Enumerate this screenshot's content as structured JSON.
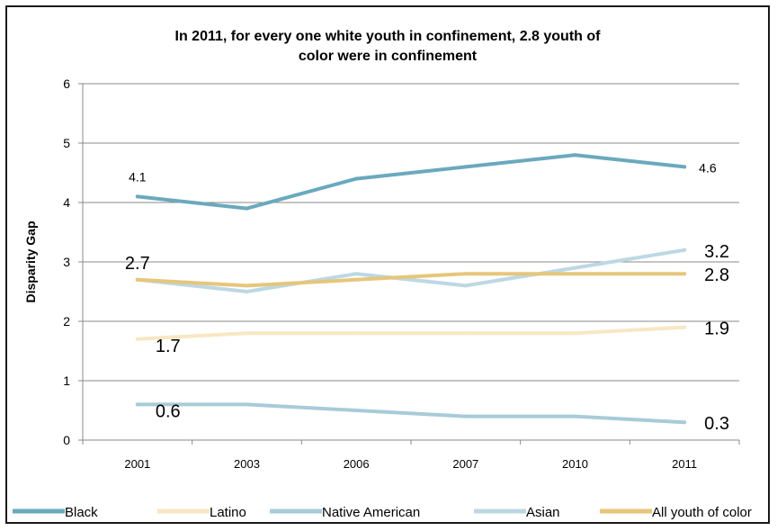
{
  "chart_data": {
    "type": "line",
    "title_lines": [
      "In 2011, for every one white youth in confinement, 2.8 youth of",
      "color were in confinement"
    ],
    "xlabel": "",
    "ylabel": "Disparity Gap",
    "categories": [
      "2001",
      "2003",
      "2006",
      "2007",
      "2010",
      "2011"
    ],
    "ylim": [
      0,
      6
    ],
    "yticks": [
      "0",
      "1",
      "2",
      "3",
      "4",
      "5",
      "6"
    ],
    "grid": true,
    "legend_position": "bottom",
    "series": [
      {
        "name": "Black",
        "color": "#6aa9be",
        "values": [
          4.1,
          3.9,
          4.4,
          4.6,
          4.8,
          4.6
        ]
      },
      {
        "name": "Latino",
        "color": "#f7e7c3",
        "values": [
          1.7,
          1.8,
          1.8,
          1.8,
          1.8,
          1.9
        ]
      },
      {
        "name": "Native American",
        "color": "#a8cbd8",
        "values": [
          0.6,
          0.6,
          0.5,
          0.4,
          0.4,
          0.3
        ]
      },
      {
        "name": "Asian",
        "color": "#bcd8e3",
        "values": [
          2.7,
          2.5,
          2.8,
          2.6,
          2.9,
          3.2
        ]
      },
      {
        "name": "All youth of color",
        "color": "#e6c67a",
        "values": [
          2.7,
          2.6,
          2.7,
          2.8,
          2.8,
          2.8
        ]
      }
    ],
    "data_labels": [
      {
        "series": 0,
        "point": 0,
        "text": "4.1",
        "size": "small"
      },
      {
        "series": 0,
        "point": 5,
        "text": "4.6",
        "size": "small"
      },
      {
        "series": 4,
        "point": 0,
        "text": "2.7",
        "size": "big"
      },
      {
        "series": 3,
        "point": 5,
        "text": "3.2",
        "size": "big"
      },
      {
        "series": 4,
        "point": 5,
        "text": "2.8",
        "size": "big"
      },
      {
        "series": 1,
        "point": 0,
        "text": "1.7",
        "size": "big"
      },
      {
        "series": 1,
        "point": 5,
        "text": "1.9",
        "size": "big"
      },
      {
        "series": 2,
        "point": 0,
        "text": "0.6",
        "size": "big"
      },
      {
        "series": 2,
        "point": 5,
        "text": "0.3",
        "size": "big"
      }
    ]
  }
}
